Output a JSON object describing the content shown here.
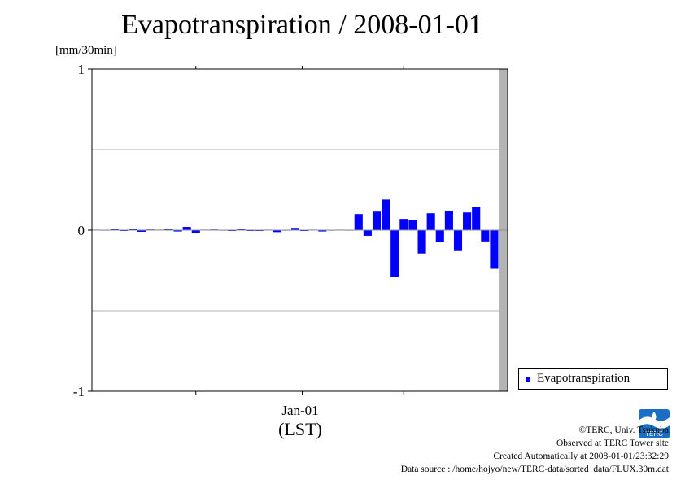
{
  "chart_data": {
    "type": "bar",
    "title": "Evapotranspiration / 2008-01-01",
    "unit_label": "[mm/30min]",
    "xlabel": "(LST)",
    "x_tick_label": "Jan-01",
    "ylim": [
      -1,
      1
    ],
    "y_ticks": [
      {
        "value": -1,
        "label": "-1"
      },
      {
        "value": 0,
        "label": "0"
      },
      {
        "value": 1,
        "label": "1"
      }
    ],
    "grid": true,
    "legend_position": "bottom-right",
    "series": [
      {
        "name": "Evapotranspiration",
        "color": "#0000ff",
        "values": [
          0.003,
          0.002,
          0.006,
          -0.004,
          0.01,
          -0.01,
          0.004,
          0.003,
          0.01,
          -0.008,
          0.02,
          -0.02,
          0.003,
          0.004,
          0.002,
          0.0,
          0.005,
          -0.003,
          0.0,
          0.003,
          -0.012,
          0.002,
          0.014,
          -0.005,
          0.003,
          -0.008,
          0.002,
          0.003,
          0.002,
          0.1,
          -0.035,
          0.115,
          0.19,
          -0.29,
          0.07,
          0.065,
          -0.145,
          0.105,
          -0.075,
          0.12,
          -0.125,
          0.11,
          0.145,
          -0.07,
          -0.24
        ]
      }
    ],
    "shaded_note": "gray band marks period without data"
  },
  "credits": {
    "copyright": "©TERC, Univ. Tsukuba",
    "observed": "Observed at TERC Tower site",
    "created": "Created Automatically at 2008-01-01/23:32:29",
    "source": "Data source : /home/hojyo/new/TERC-data/sorted_data/FLUX.30m.dat"
  },
  "logo": {
    "text": "TERC",
    "color": "#1a6fc4"
  }
}
